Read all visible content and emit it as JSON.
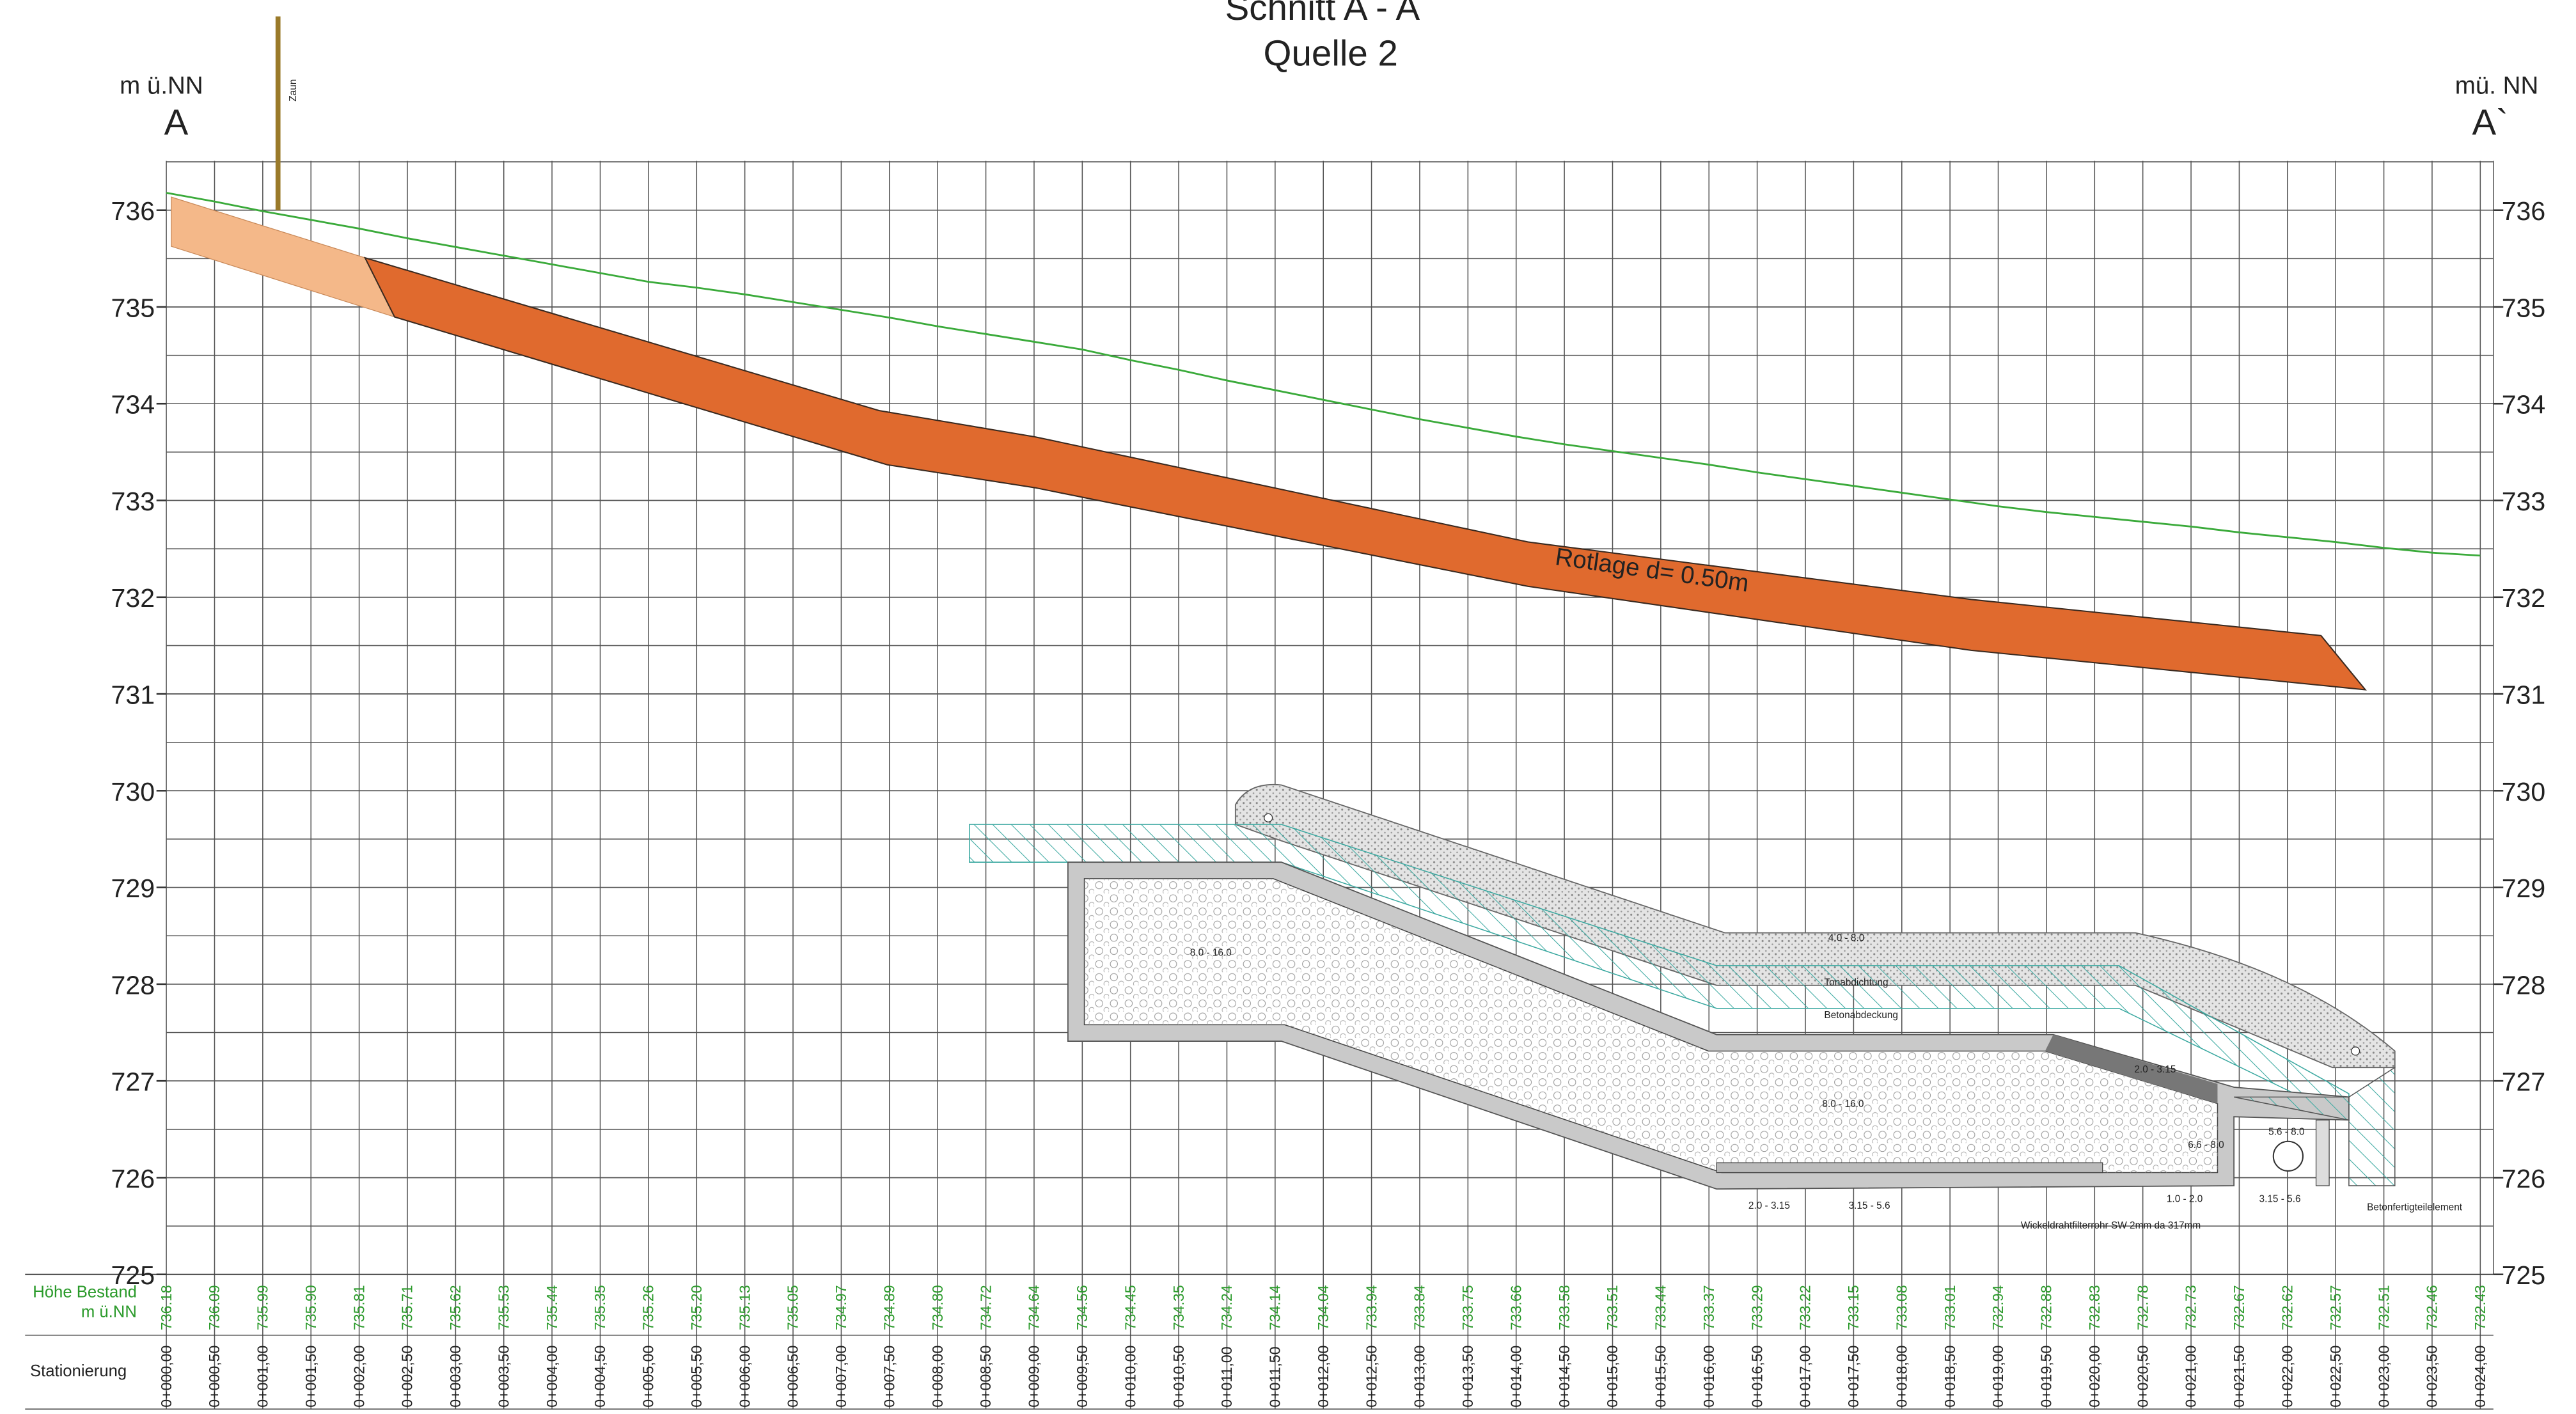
{
  "header": {
    "title": "Schnitt A - A",
    "subtitle": "Quelle 2",
    "left_unit": "m ü.NN",
    "left_mark": "A",
    "right_unit": "mü. NN",
    "right_mark": "A`",
    "fence": "Zaun"
  },
  "axis": {
    "ylim": [
      725,
      736
    ],
    "yticks": [
      725,
      726,
      727,
      728,
      729,
      730,
      731,
      732,
      733,
      734,
      735,
      736
    ]
  },
  "annotation": "Rotlage d= 0.50m",
  "structure_labels": [
    "4.0 - 8.0",
    "Tonabdichtung",
    "Betonabdeckung",
    "8.0 - 16.0",
    "8.0 - 16.0",
    "2.0 - 3.15",
    "5.6 - 8.0",
    "6.6 - 8.0",
    "1.0 - 2.0",
    "3.15 - 5.6",
    "2.0 - 3.15",
    "3.15 - 5.6",
    "Wickeldrahtfilterrohr SW 2mm da 317mm",
    "Betonfertigteilelement"
  ],
  "table": {
    "height_label": [
      "Höhe Bestand",
      "m ü.NN"
    ],
    "station_label": "Stationierung",
    "heights": [
      "736.18",
      "736.09",
      "735.99",
      "735.90",
      "735.81",
      "735.71",
      "735.62",
      "735.53",
      "735.44",
      "735.35",
      "735.26",
      "735.20",
      "735.13",
      "735.05",
      "734.97",
      "734.89",
      "734.80",
      "734.72",
      "734.64",
      "734.56",
      "734.45",
      "734.35",
      "734.24",
      "734.14",
      "734.04",
      "733.94",
      "733.84",
      "733.75",
      "733.66",
      "733.58",
      "733.51",
      "733.44",
      "733.37",
      "733.29",
      "733.22",
      "733.15",
      "733.08",
      "733.01",
      "732.94",
      "732.88",
      "732.83",
      "732.78",
      "732.73",
      "732.67",
      "732.62",
      "732.57",
      "732.51",
      "732.46",
      "732.43"
    ],
    "stations": [
      "0+000,00",
      "0+000,50",
      "0+001,00",
      "0+001,50",
      "0+002,00",
      "0+002,50",
      "0+003,00",
      "0+003,50",
      "0+004,00",
      "0+004,50",
      "0+005,00",
      "0+005,50",
      "0+006,00",
      "0+006,50",
      "0+007,00",
      "0+007,50",
      "0+008,00",
      "0+008,50",
      "0+009,00",
      "0+009,50",
      "0+010,00",
      "0+010,50",
      "0+011,00",
      "0+011,50",
      "0+012,00",
      "0+012,50",
      "0+013,00",
      "0+013,50",
      "0+014,00",
      "0+014,50",
      "0+015,00",
      "0+015,50",
      "0+016,00",
      "0+016,50",
      "0+017,00",
      "0+017,50",
      "0+018,00",
      "0+018,50",
      "0+019,00",
      "0+019,50",
      "0+020,00",
      "0+020,50",
      "0+021,00",
      "0+021,50",
      "0+022,00",
      "0+022,50",
      "0+023,00",
      "0+023,50",
      "0+024,00"
    ]
  }
}
